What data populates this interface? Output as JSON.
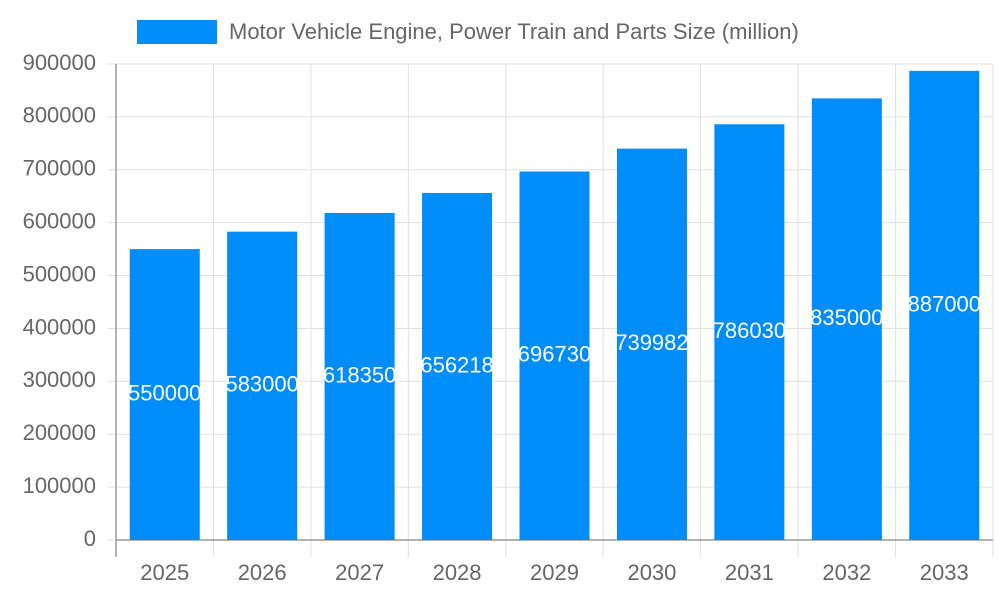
{
  "chart_data": {
    "type": "bar",
    "categories": [
      "2025",
      "2026",
      "2027",
      "2028",
      "2029",
      "2030",
      "2031",
      "2032",
      "2033"
    ],
    "series": [
      {
        "name": "Motor Vehicle Engine, Power Train and Parts Size (million)",
        "color": "#008cf9",
        "values": [
          550000,
          583000,
          618350,
          656218,
          696730,
          739982,
          786030,
          835000,
          887000
        ]
      }
    ],
    "ylim": [
      0,
      900000
    ],
    "yticks": [
      0,
      100000,
      200000,
      300000,
      400000,
      500000,
      600000,
      700000,
      800000,
      900000
    ],
    "grid": true,
    "legend": "top"
  }
}
